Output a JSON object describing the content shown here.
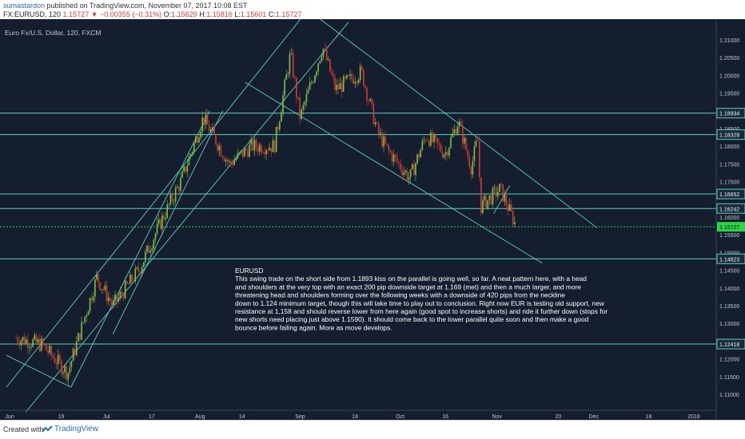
{
  "header": {
    "author": "sumastardon",
    "published_text": "published on TradingView.com, November 07, 2017 10:08 EST",
    "symbol": "FX:EURUSD, 120",
    "price": "1.15727",
    "change": "−0.00355 (−0.31%)",
    "ohlc": [
      {
        "label": "O:",
        "value": "1.15629"
      },
      {
        "label": "H:",
        "value": "1.15816"
      },
      {
        "label": "L:",
        "value": "1.15601"
      },
      {
        "label": "C:",
        "value": "1.15727"
      }
    ]
  },
  "colors": {
    "background": "#141e2e",
    "line": "#5fcfc0",
    "candle_up": "#7ec24a",
    "candle_down": "#d63b2f",
    "axis_text": "#c4c8cf",
    "current_price": "#2fd34a",
    "annotation_text": "#ffffff"
  },
  "chart_data": {
    "type": "candlestick",
    "title": "Euro Fx/U.S. Dollar, 120, FXCM",
    "xlabel": "",
    "ylabel": "",
    "x_tick_labels": [
      "Jun",
      "19",
      "Jul",
      "17",
      "Aug",
      "14",
      "Sep",
      "18",
      "Oct",
      "16",
      "Nov",
      "20",
      "Dec",
      "18",
      "2018"
    ],
    "y_tick_labels": [
      "1.21000",
      "1.20500",
      "1.20000",
      "1.19500",
      "1.18500",
      "1.18000",
      "1.17500",
      "1.17000",
      "1.16000",
      "1.15500",
      "1.15000",
      "1.14500",
      "1.14000",
      "1.13500",
      "1.13000",
      "1.12500",
      "1.12000",
      "1.11500",
      "1.11000"
    ],
    "ylim": [
      1.1055,
      1.2145
    ],
    "grid": false,
    "price_path_points": [
      [
        "2017-06-05",
        1.126
      ],
      [
        "2017-06-13",
        1.124
      ],
      [
        "2017-06-21",
        1.116
      ],
      [
        "2017-06-30",
        1.143
      ],
      [
        "2017-07-05",
        1.135
      ],
      [
        "2017-07-13",
        1.145
      ],
      [
        "2017-07-20",
        1.159
      ],
      [
        "2017-07-26",
        1.17
      ],
      [
        "2017-08-02",
        1.188
      ],
      [
        "2017-08-10",
        1.175
      ],
      [
        "2017-08-17",
        1.18
      ],
      [
        "2017-08-24",
        1.18
      ],
      [
        "2017-08-29",
        1.206
      ],
      [
        "2017-09-01",
        1.188
      ],
      [
        "2017-09-08",
        1.208
      ],
      [
        "2017-09-12",
        1.196
      ],
      [
        "2017-09-20",
        1.201
      ],
      [
        "2017-09-25",
        1.184
      ],
      [
        "2017-09-28",
        1.179
      ],
      [
        "2017-10-05",
        1.171
      ],
      [
        "2017-10-10",
        1.183
      ],
      [
        "2017-10-16",
        1.178
      ],
      [
        "2017-10-20",
        1.187
      ],
      [
        "2017-10-24",
        1.174
      ],
      [
        "2017-10-26",
        1.182
      ],
      [
        "2017-10-27",
        1.163
      ],
      [
        "2017-11-02",
        1.168
      ],
      [
        "2017-11-07",
        1.1573
      ]
    ],
    "horizontal_levels": [
      {
        "price": 1.18934,
        "label": "1.18934"
      },
      {
        "price": 1.18328,
        "label": "1.18328"
      },
      {
        "price": 1.16652,
        "label": "1.16652"
      },
      {
        "price": 1.16242,
        "label": "1.16242"
      },
      {
        "price": 1.14823,
        "label": "1.14823"
      },
      {
        "price": 1.12418,
        "label": "1.12418"
      }
    ],
    "current_price": {
      "price": 1.15727,
      "label": "1.15727"
    },
    "hidden_price_labels": [
      "1.16500",
      "1.15112"
    ],
    "trendlines": [
      {
        "from": [
          "2017-06-02",
          1.112
        ],
        "to": [
          "2017-09-03",
          1.218
        ]
      },
      {
        "from": [
          "2017-06-08",
          1.105
        ],
        "to": [
          "2017-09-16",
          1.215
        ]
      },
      {
        "from": [
          "2017-06-22",
          1.112
        ],
        "to": [
          "2017-08-04",
          1.19
        ]
      },
      {
        "from": [
          "2017-07-05",
          1.127
        ],
        "to": [
          "2017-08-08",
          1.19
        ]
      },
      {
        "from": [
          "2017-09-07",
          1.216
        ],
        "to": [
          "2017-12-02",
          1.157
        ]
      },
      {
        "from": [
          "2017-08-15",
          1.198
        ],
        "to": [
          "2017-11-15",
          1.147
        ]
      },
      {
        "from": [
          "2017-10-31",
          1.161
        ],
        "to": [
          "2017-11-05",
          1.169
        ]
      },
      {
        "from": [
          "2017-06-02",
          1.121
        ],
        "to": [
          "2017-06-22",
          1.112
        ]
      }
    ],
    "annotation": {
      "title": "EURUSD",
      "lines": [
        "This swing trade on the short side from 1.1893 kiss on the parallel is going well, so far. A neat pattern here, with a head",
        "and shoulders at the very top with an exact 200 pip downside target at 1.169 (met) and then a much larger, and more",
        "threatening head and shoulders forming over the following weeks with a downside of 420 pips from the neckline",
        "down to 1.124 minimum target, though this will take time to play out to conclusion. Right now EUR is testing old support, new",
        "resistance at 1,158 and should reverse lower from here again (good spot to increase shorts) and ride it further down (stops for",
        "new shorts need placing just above 1.1590). It should come back to the lower parallel quite soon and then make a good",
        "bounce before failing again. More as move develops."
      ]
    }
  },
  "footer": {
    "created_with": "Created with",
    "brand": "TradingView"
  }
}
